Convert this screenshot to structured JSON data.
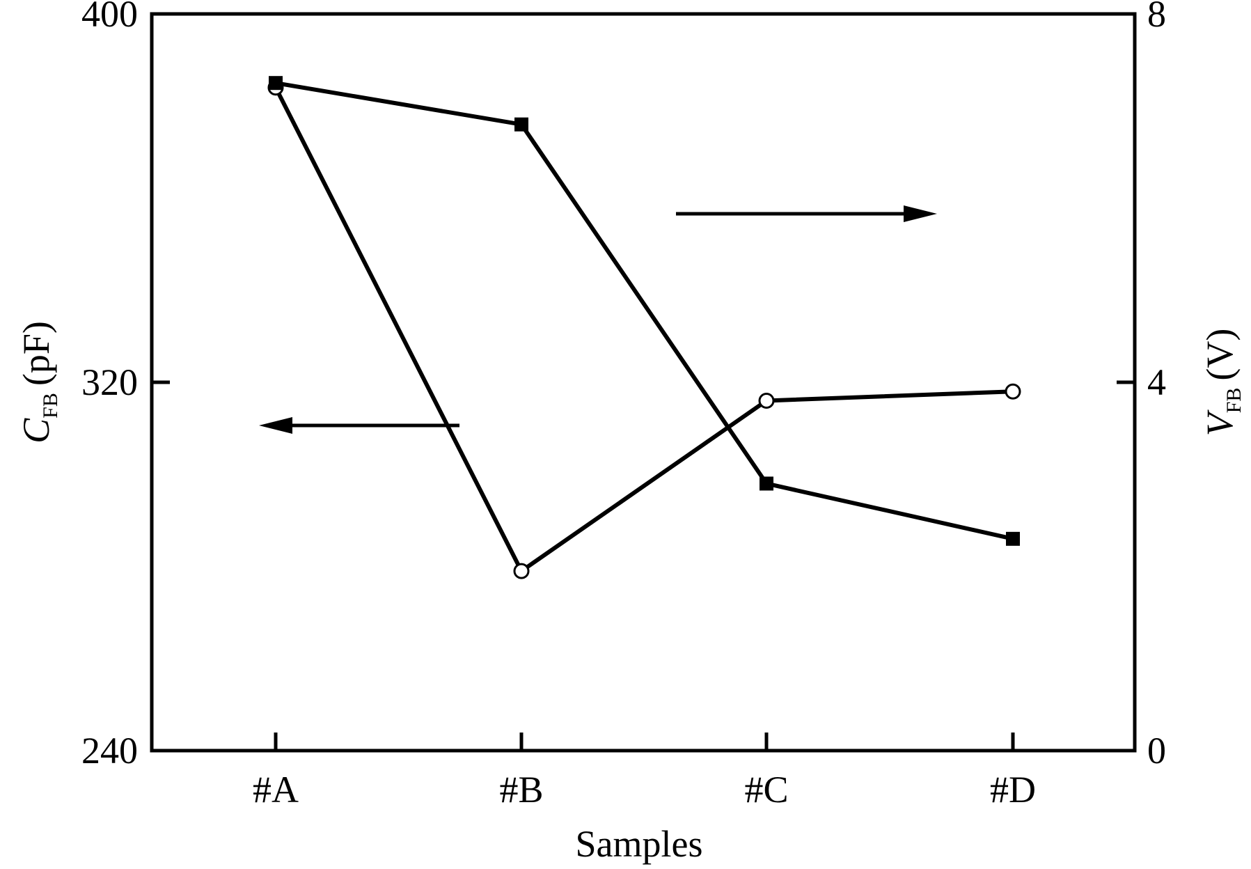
{
  "chart_data": {
    "type": "line",
    "x_label": "Samples",
    "categories": [
      "#A",
      "#B",
      "#C",
      "#D"
    ],
    "left_axis": {
      "label_main": "C",
      "label_sub": "FB",
      "label_unit": "(pF)",
      "range": [
        240,
        400
      ],
      "ticks": [
        "240",
        "320",
        "400"
      ]
    },
    "right_axis": {
      "label_main": "V",
      "label_sub": "FB",
      "label_unit": "(V)",
      "range": [
        0,
        8
      ],
      "ticks": [
        "0",
        "4",
        "8"
      ]
    },
    "series": [
      {
        "axis": "left",
        "marker": "open-circle",
        "values": [
          384,
          279,
          316,
          318
        ]
      },
      {
        "axis": "right",
        "marker": "filled-square",
        "values": [
          7.25,
          6.8,
          2.9,
          2.3
        ]
      }
    ],
    "annotations": [
      {
        "type": "arrow",
        "direction": "left",
        "points_to": "left-axis"
      },
      {
        "type": "arrow",
        "direction": "right",
        "points_to": "right-axis"
      }
    ],
    "grid": false
  }
}
